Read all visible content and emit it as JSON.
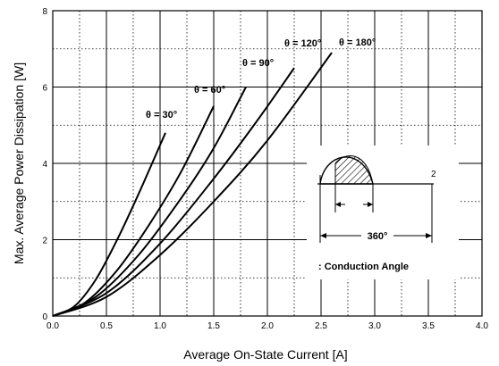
{
  "chart_data": {
    "type": "line",
    "xlabel": "Average On-State Current [A]",
    "ylabel": "Max. Average Power Dissipation [W]",
    "xlim": [
      0.0,
      4.0
    ],
    "ylim": [
      0,
      8
    ],
    "x_ticks": [
      "0.0",
      "0.5",
      "1.0",
      "1.5",
      "2.0",
      "2.5",
      "3.0",
      "3.5",
      "4.0"
    ],
    "y_ticks": [
      "0",
      "2",
      "4",
      "6",
      "8"
    ],
    "grid": "major solid, minor dotted",
    "series": [
      {
        "name": "θ = 30°",
        "x": [
          0,
          0.2,
          0.4,
          0.6,
          0.8,
          1.05
        ],
        "y": [
          0,
          0.25,
          0.95,
          2.0,
          3.2,
          4.8
        ]
      },
      {
        "name": "θ = 60°",
        "x": [
          0,
          0.3,
          0.6,
          0.9,
          1.2,
          1.5
        ],
        "y": [
          0,
          0.35,
          1.2,
          2.4,
          3.8,
          5.5
        ]
      },
      {
        "name": "θ = 90°",
        "x": [
          0,
          0.4,
          0.8,
          1.2,
          1.5,
          1.8
        ],
        "y": [
          0,
          0.5,
          1.6,
          3.1,
          4.4,
          6.0
        ]
      },
      {
        "name": "θ = 120°",
        "x": [
          0,
          0.5,
          1.0,
          1.5,
          1.9,
          2.25
        ],
        "y": [
          0,
          0.6,
          1.9,
          3.6,
          5.1,
          6.5
        ]
      },
      {
        "name": "θ = 180°",
        "x": [
          0,
          0.5,
          1.0,
          1.5,
          2.0,
          2.6
        ],
        "y": [
          0,
          0.5,
          1.6,
          3.0,
          4.6,
          6.9
        ]
      }
    ],
    "inset": {
      "label_2": "2",
      "angle": "360°",
      "conduction": ": Conduction Angle"
    }
  }
}
